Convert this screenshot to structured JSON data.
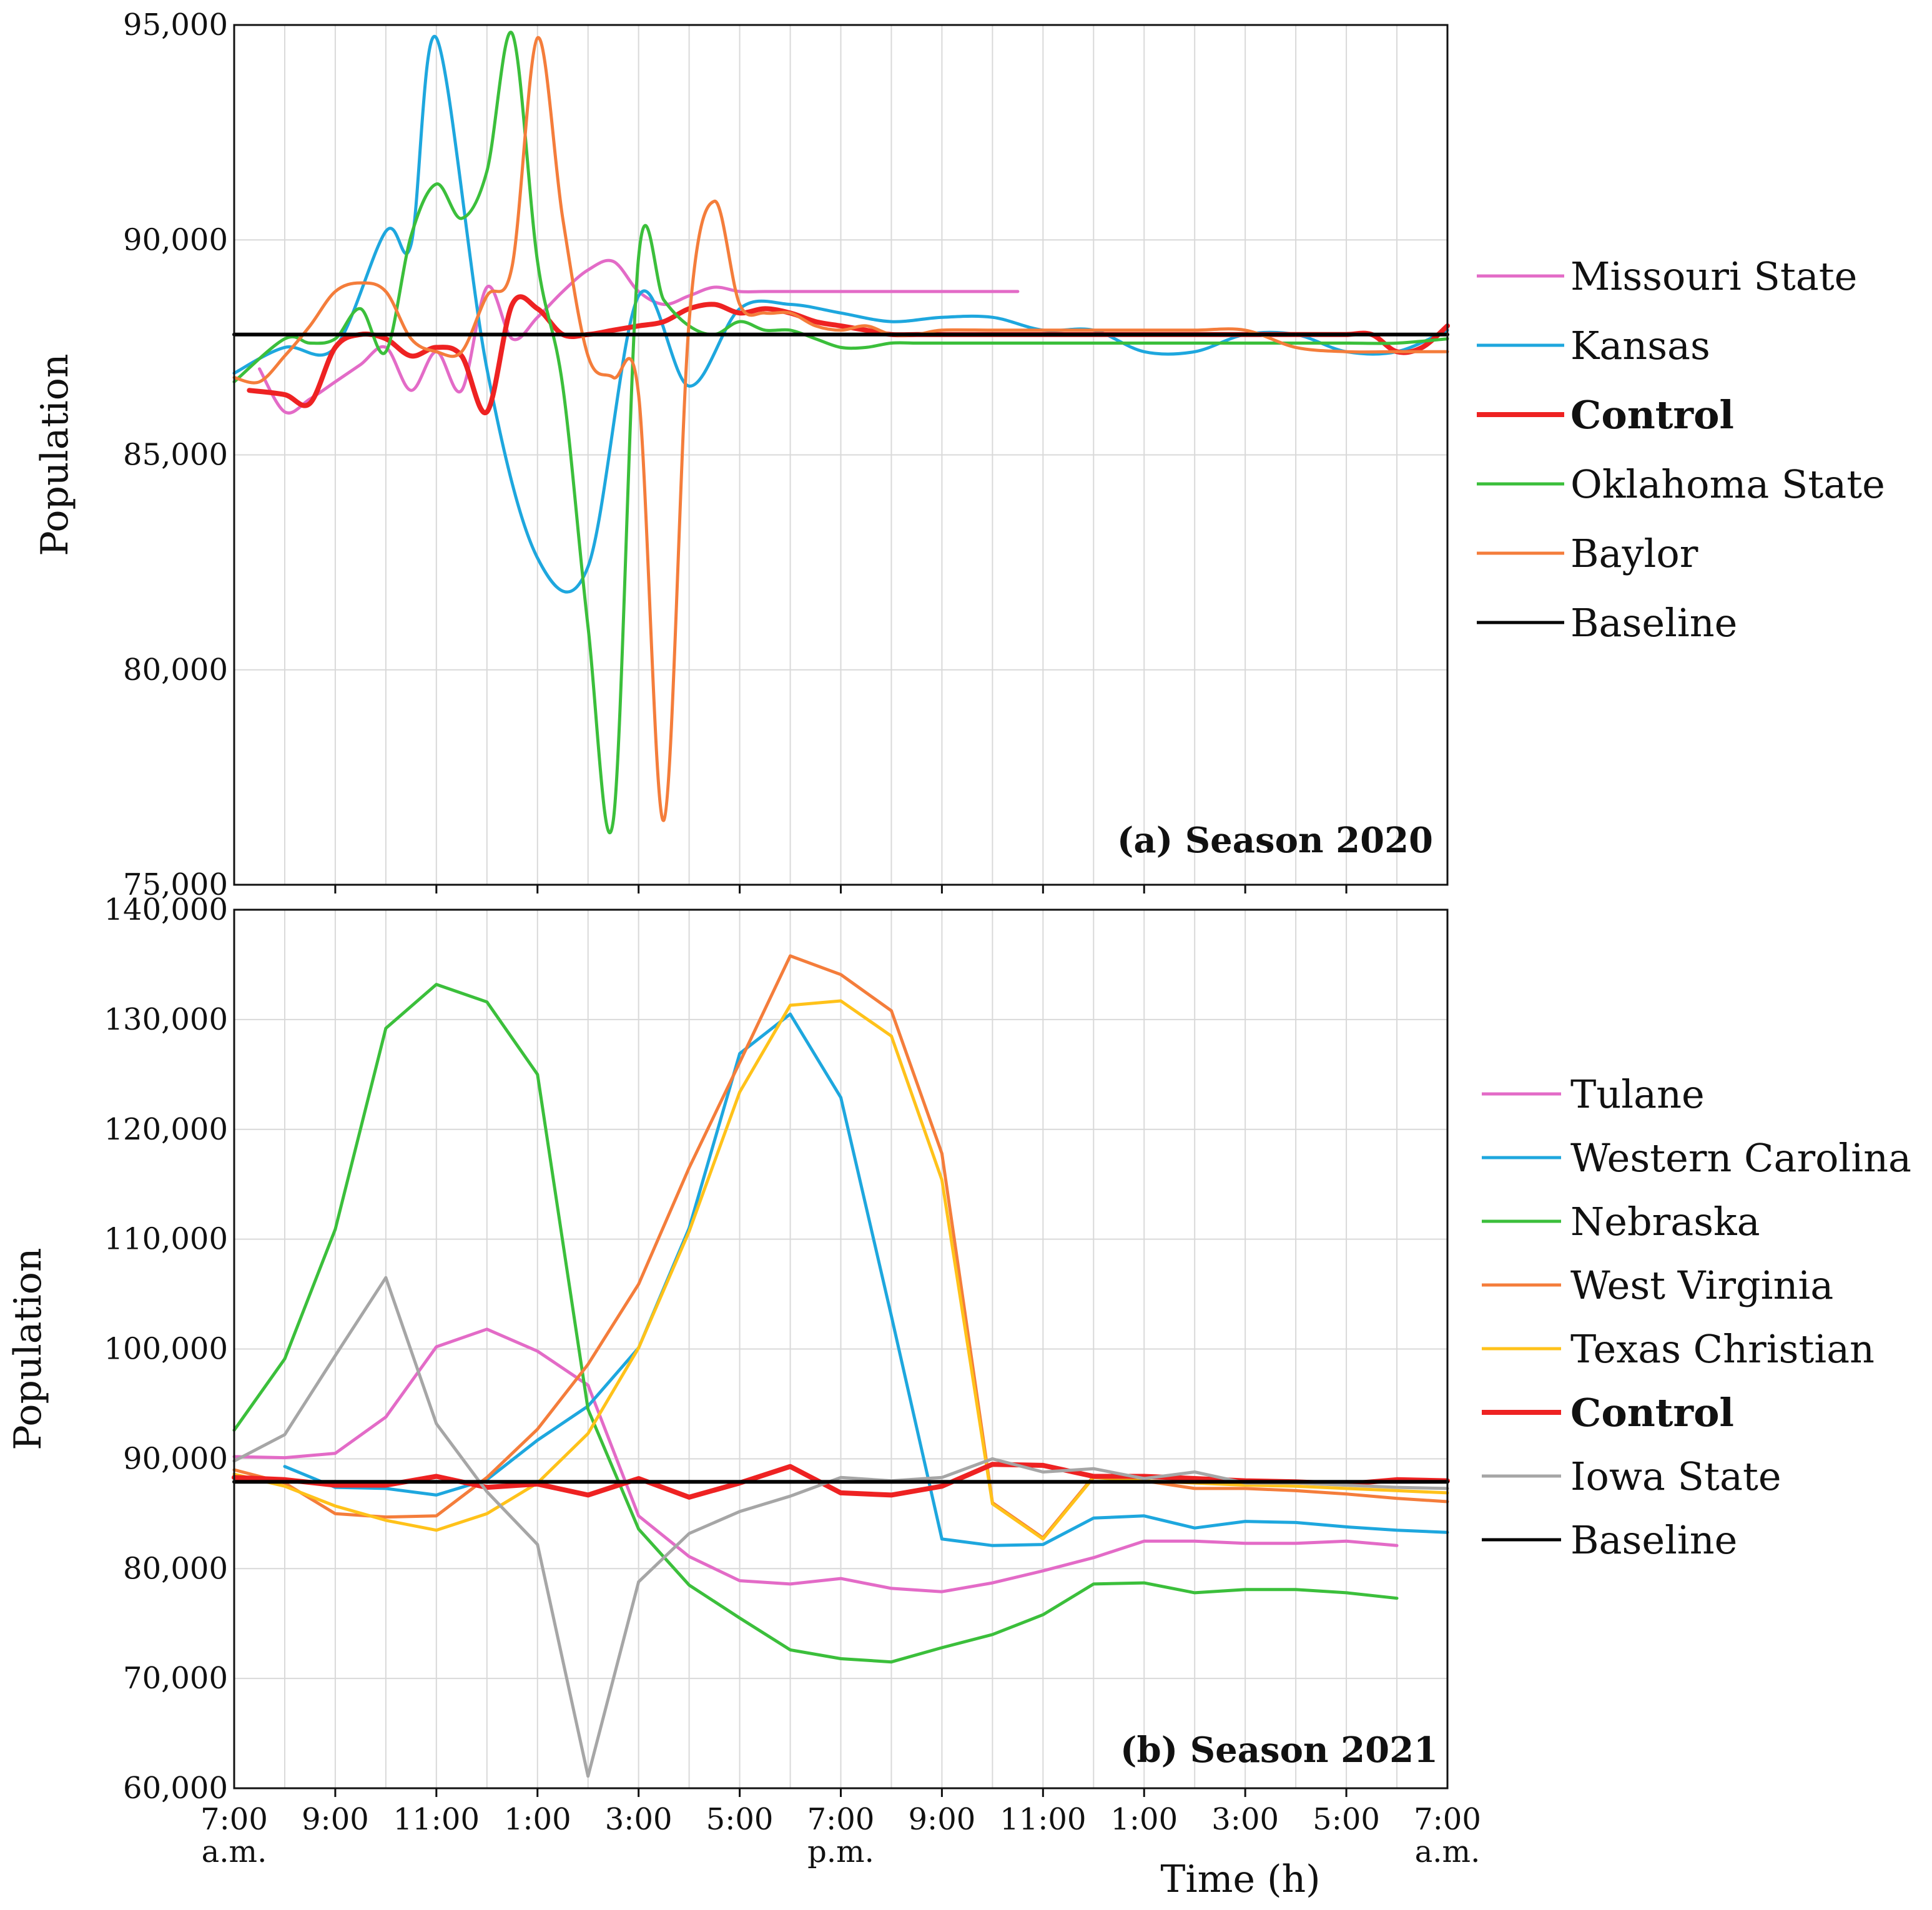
{
  "chart_data": [
    {
      "type": "line",
      "title": "(a) Season 2020",
      "ylabel": "Population",
      "xlabel": "",
      "x_unit": "hours after 7:00 a.m.",
      "xlim": [
        0,
        24
      ],
      "ylim": [
        75000,
        95000
      ],
      "yticks": [
        75000,
        80000,
        85000,
        90000,
        95000
      ],
      "ytick_labels": [
        "75,000",
        "80,000",
        "85,000",
        "90,000",
        "95,000"
      ],
      "smooth": true,
      "grid": true,
      "legend_position": "right",
      "series": [
        {
          "name": "Missouri State",
          "color": "#e36bc7",
          "bold": false,
          "x": [
            0.5,
            1,
            1.5,
            2,
            2.5,
            3,
            3.5,
            4,
            4.5,
            5,
            5.5,
            6,
            6.5,
            7,
            7.5,
            8,
            8.5,
            9,
            9.5,
            10,
            10.5,
            11,
            11.5,
            12,
            12.5,
            13,
            13.5,
            14,
            14.5,
            15.5
          ],
          "y": [
            87000,
            86000,
            86300,
            86700,
            87100,
            87500,
            86500,
            87400,
            86500,
            88900,
            87700,
            88200,
            88800,
            89300,
            89500,
            88800,
            88500,
            88700,
            88900,
            88800,
            88800,
            88800,
            88800,
            88800,
            88800,
            88800,
            88800,
            88800,
            88800,
            88800
          ]
        },
        {
          "name": "Kansas",
          "color": "#1ea7de",
          "bold": false,
          "x": [
            0,
            1,
            2,
            3,
            3.5,
            4,
            5,
            6,
            7,
            8,
            9,
            10,
            11,
            12,
            13,
            14,
            15,
            16,
            17,
            18,
            19,
            20,
            21,
            22,
            23,
            24
          ],
          "y": [
            86900,
            87500,
            87500,
            90200,
            89900,
            94700,
            87000,
            82600,
            82400,
            88700,
            86600,
            88400,
            88500,
            88300,
            88100,
            88200,
            88200,
            87900,
            87900,
            87400,
            87400,
            87800,
            87800,
            87400,
            87400,
            87900
          ]
        },
        {
          "name": "Control",
          "color": "#ee2222",
          "bold": true,
          "x": [
            0.3,
            1,
            1.5,
            2,
            2.5,
            3,
            3.5,
            4,
            4.5,
            5,
            5.5,
            6,
            6.5,
            7,
            7.5,
            8,
            8.5,
            9,
            9.5,
            10,
            10.5,
            11,
            11.5,
            12,
            12.5,
            13,
            13.5,
            14,
            14.5,
            15,
            15.5,
            16,
            16.5,
            17,
            17.5,
            18,
            18.5,
            19,
            19.5,
            20,
            20.5,
            21,
            21.5,
            22,
            22.5,
            23,
            23.5,
            24
          ],
          "y": [
            86500,
            86400,
            86200,
            87500,
            87800,
            87700,
            87300,
            87500,
            87300,
            86000,
            88500,
            88400,
            87800,
            87800,
            87900,
            88000,
            88100,
            88400,
            88500,
            88300,
            88400,
            88300,
            88100,
            88000,
            87900,
            87800,
            87800,
            87800,
            87800,
            87800,
            87800,
            87800,
            87800,
            87800,
            87800,
            87800,
            87800,
            87800,
            87800,
            87800,
            87800,
            87800,
            87800,
            87800,
            87800,
            87400,
            87500,
            88000
          ]
        },
        {
          "name": "Oklahoma State",
          "color": "#3bbf3b",
          "bold": false,
          "x": [
            0,
            1,
            1.5,
            2,
            2.5,
            3,
            3.5,
            4,
            4.5,
            5,
            5.5,
            6,
            6.5,
            7,
            7.5,
            8,
            8.5,
            9,
            9.5,
            10,
            10.5,
            11,
            11.5,
            12,
            12.5,
            13,
            13.5,
            14,
            14.5,
            15,
            16,
            17,
            18,
            19,
            20,
            21,
            22,
            23,
            24
          ],
          "y": [
            86700,
            87700,
            87600,
            87700,
            88400,
            87400,
            90100,
            91300,
            90500,
            91600,
            94800,
            89500,
            86600,
            81000,
            76500,
            89600,
            88600,
            88000,
            87800,
            88100,
            87900,
            87900,
            87700,
            87500,
            87500,
            87600,
            87600,
            87600,
            87600,
            87600,
            87600,
            87600,
            87600,
            87600,
            87600,
            87600,
            87600,
            87600,
            87700
          ]
        },
        {
          "name": "Baylor",
          "color": "#f47d3b",
          "bold": false,
          "x": [
            0,
            0.5,
            1,
            1.5,
            2,
            2.5,
            3,
            3.5,
            4,
            4.5,
            5,
            5.5,
            6,
            6.5,
            7,
            7.5,
            8,
            8.5,
            9,
            9.5,
            10,
            10.5,
            11,
            11.5,
            12,
            12.5,
            13,
            13.5,
            14,
            15,
            16,
            17,
            18,
            19,
            20,
            21,
            22,
            23,
            24
          ],
          "y": [
            86800,
            86700,
            87300,
            88000,
            88800,
            89000,
            88800,
            87700,
            87400,
            87400,
            88700,
            89400,
            94700,
            90500,
            87300,
            86800,
            86400,
            76500,
            88100,
            90900,
            88500,
            88300,
            88300,
            88000,
            87900,
            88000,
            87800,
            87800,
            87900,
            87900,
            87900,
            87900,
            87900,
            87900,
            87900,
            87500,
            87400,
            87400,
            87400
          ]
        },
        {
          "name": "Baseline",
          "color": "#000000",
          "bold": false,
          "x": [
            0,
            24
          ],
          "y": [
            87800,
            87800
          ]
        }
      ]
    },
    {
      "type": "line",
      "title": "(b) Season 2021",
      "ylabel": "Population",
      "xlabel": "Time (h)",
      "x_unit": "hours after 7:00 a.m.",
      "xlim": [
        0,
        24
      ],
      "ylim": [
        60000,
        140000
      ],
      "yticks": [
        60000,
        70000,
        80000,
        90000,
        100000,
        110000,
        120000,
        130000,
        140000
      ],
      "ytick_labels": [
        "60,000",
        "70,000",
        "80,000",
        "90,000",
        "100,000",
        "110,000",
        "120,000",
        "130,000",
        "140,000"
      ],
      "xticks": [
        0,
        2,
        4,
        6,
        8,
        10,
        12,
        14,
        16,
        18,
        20,
        22,
        24
      ],
      "xtick_labels": [
        "7:00",
        "9:00",
        "11:00",
        "1:00",
        "3:00",
        "5:00",
        "7:00",
        "9:00",
        "11:00",
        "1:00",
        "3:00",
        "5:00",
        "7:00"
      ],
      "xtick_sublabels": [
        "a.m.",
        "",
        "",
        "",
        "",
        "",
        "p.m.",
        "",
        "",
        "",
        "",
        "",
        "a.m."
      ],
      "smooth": false,
      "grid": true,
      "legend_position": "right",
      "series": [
        {
          "name": "Tulane",
          "color": "#e36bc7",
          "bold": false,
          "x": [
            0,
            1,
            2,
            3,
            4,
            5,
            6,
            7,
            8,
            9,
            10,
            11,
            12,
            13,
            14,
            15,
            16,
            17,
            18,
            19,
            20,
            21,
            22,
            23
          ],
          "y": [
            90200,
            90100,
            90500,
            93800,
            100200,
            101800,
            99800,
            96700,
            84800,
            81100,
            78900,
            78600,
            79100,
            78200,
            77900,
            78700,
            79800,
            81000,
            82500,
            82500,
            82300,
            82300,
            82500,
            82100
          ]
        },
        {
          "name": "Western Carolina",
          "color": "#1ea7de",
          "bold": false,
          "x": [
            1,
            2,
            3,
            4,
            5,
            6,
            7,
            8,
            9,
            10,
            11,
            12,
            13,
            14,
            15,
            16,
            17,
            18,
            19,
            20,
            21,
            22,
            23,
            24
          ],
          "y": [
            89300,
            87400,
            87300,
            86700,
            88100,
            91700,
            94800,
            100100,
            111000,
            126900,
            130500,
            122900,
            103000,
            82700,
            82100,
            82200,
            84600,
            84800,
            83700,
            84300,
            84200,
            83800,
            83500,
            83300
          ]
        },
        {
          "name": "Nebraska",
          "color": "#3bbf3b",
          "bold": false,
          "x": [
            0,
            1,
            2,
            3,
            4,
            5,
            6,
            7,
            8,
            9,
            10,
            11,
            12,
            13,
            14,
            15,
            16,
            17,
            18,
            19,
            20,
            21,
            22,
            23
          ],
          "y": [
            92600,
            99100,
            110900,
            129200,
            133200,
            131600,
            125000,
            94500,
            83600,
            78500,
            75500,
            72600,
            71800,
            71500,
            72800,
            74000,
            75800,
            78600,
            78700,
            77800,
            78100,
            78100,
            77800,
            77300
          ]
        },
        {
          "name": "West Virginia",
          "color": "#f47d3b",
          "bold": false,
          "x": [
            0,
            1,
            2,
            3,
            4,
            5,
            6,
            7,
            8,
            9,
            10,
            11,
            12,
            13,
            14,
            15,
            16,
            17,
            18,
            19,
            20,
            21,
            22,
            23,
            24
          ],
          "y": [
            89000,
            87800,
            85000,
            84700,
            84800,
            88300,
            92700,
            98600,
            105900,
            116500,
            126100,
            135800,
            134100,
            130800,
            117800,
            86000,
            82800,
            88400,
            88000,
            87300,
            87300,
            87100,
            86800,
            86400,
            86100
          ]
        },
        {
          "name": "Texas Christian",
          "color": "#ffc21a",
          "bold": false,
          "x": [
            0,
            1,
            2,
            3,
            4,
            5,
            6,
            7,
            8,
            9,
            10,
            11,
            12,
            13,
            14,
            15,
            16,
            17,
            18,
            19,
            20,
            21,
            22,
            23,
            24
          ],
          "y": [
            88600,
            87500,
            85700,
            84400,
            83500,
            85000,
            87800,
            92300,
            100100,
            110700,
            123400,
            131300,
            131700,
            128500,
            115400,
            85900,
            82700,
            88300,
            88000,
            87800,
            87600,
            87500,
            87300,
            87100,
            86900
          ]
        },
        {
          "name": "Control",
          "color": "#ee2222",
          "bold": true,
          "x": [
            0,
            1,
            2,
            3,
            4,
            5,
            6,
            7,
            8,
            9,
            10,
            11,
            12,
            13,
            14,
            15,
            16,
            17,
            18,
            19,
            20,
            21,
            22,
            23,
            24
          ],
          "y": [
            88300,
            88100,
            87600,
            87600,
            88400,
            87400,
            87700,
            86700,
            88200,
            86500,
            87800,
            89300,
            86900,
            86700,
            87500,
            89500,
            89400,
            88400,
            88400,
            88200,
            88000,
            87900,
            87700,
            88100,
            88000
          ]
        },
        {
          "name": "Iowa State",
          "color": "#a6a6a6",
          "bold": false,
          "x": [
            0,
            1,
            2,
            3,
            4,
            5,
            6,
            7,
            8,
            9,
            10,
            11,
            12,
            13,
            14,
            15,
            16,
            17,
            18,
            19,
            20,
            21,
            22,
            23,
            24
          ],
          "y": [
            89800,
            92200,
            99400,
            106500,
            93200,
            87000,
            82200,
            61100,
            78800,
            83200,
            85200,
            86600,
            88300,
            88000,
            88300,
            90000,
            88800,
            89100,
            88200,
            88800,
            87800,
            87800,
            87600,
            87400,
            87300
          ]
        },
        {
          "name": "Baseline",
          "color": "#000000",
          "bold": false,
          "x": [
            0,
            24
          ],
          "y": [
            87900,
            87900
          ]
        }
      ]
    }
  ]
}
